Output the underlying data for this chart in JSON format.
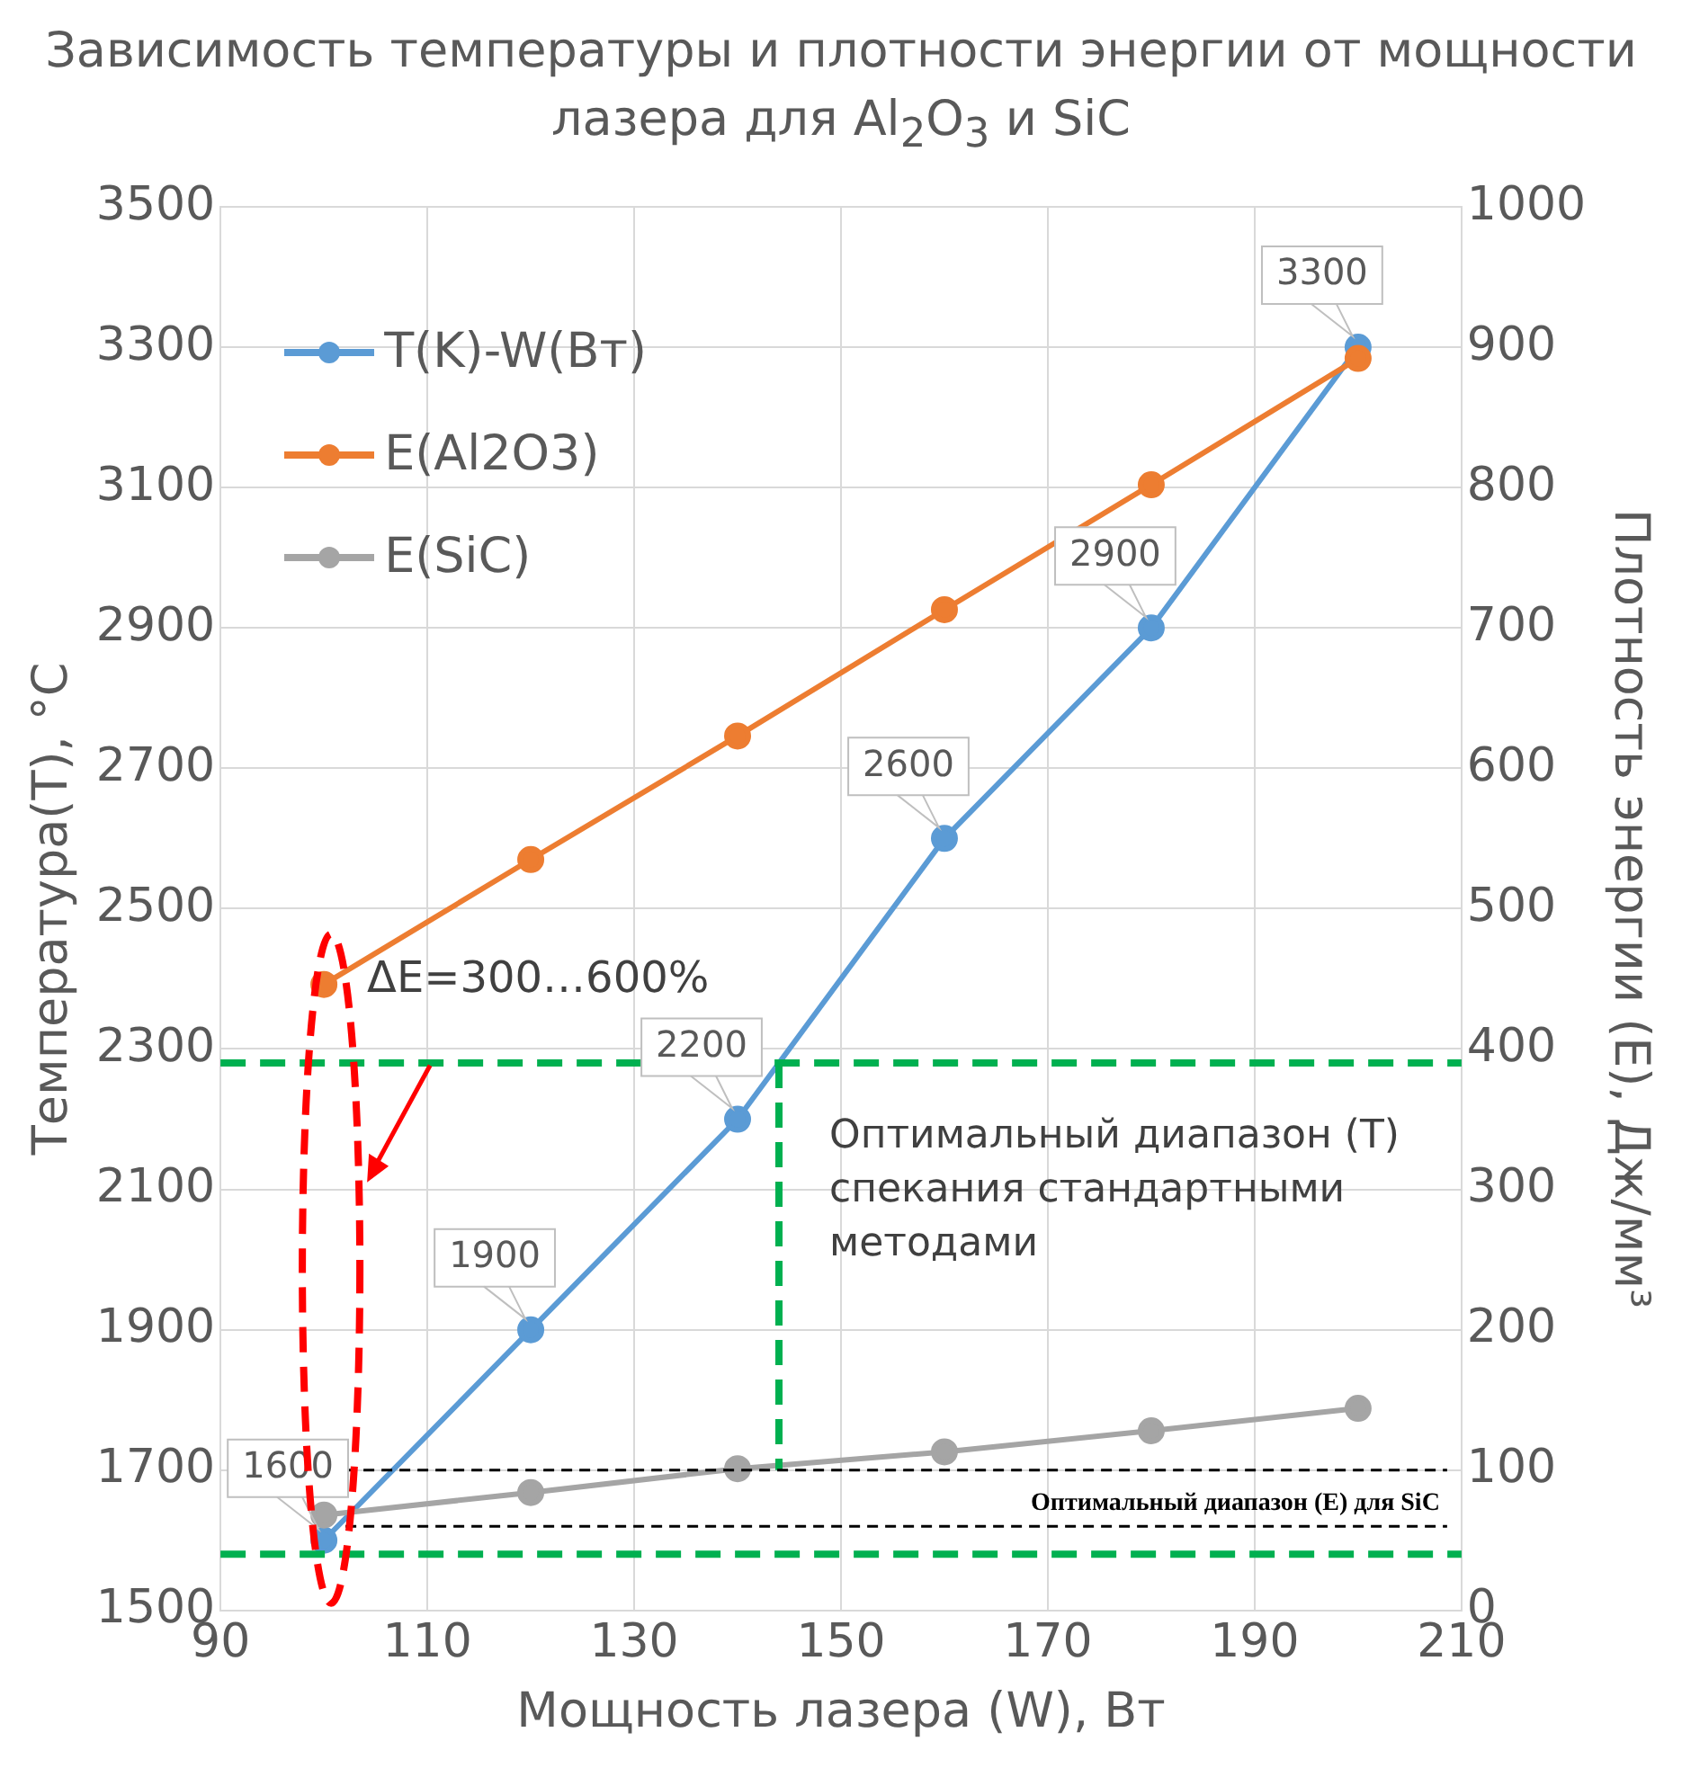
{
  "chart_data": {
    "type": "line",
    "title": "Зависимость температуры и плотности энергии от мощности лазера для Al$_{2}$O$_{3}$ и SiC",
    "xlabel": "Мощность лазера (W), Вт",
    "ylabel": "Температура(T), °C",
    "y2label": "Плотность энергии (E), Дж/мм³",
    "x": [
      100,
      120,
      140,
      160,
      180,
      200
    ],
    "series": [
      {
        "name": "T(K)-W(Вт)",
        "color": "#5b9bd5",
        "values": [
          1600,
          1900,
          2200,
          2600,
          2900,
          3300
        ],
        "value_labels": [
          "1600",
          "1900",
          "2200",
          "2600",
          "2900",
          "3300"
        ]
      },
      {
        "name": "E(Al2O3)",
        "color": "#ed7d31",
        "axis": "y2",
        "values": [
          446,
          535,
          623,
          713,
          802,
          892
        ]
      },
      {
        "name": "E(SiC)",
        "color": "#a5a5a5",
        "axis": "y2",
        "values": [
          68,
          84,
          101,
          113,
          128,
          144
        ]
      }
    ],
    "xlim": [
      90,
      210
    ],
    "xticks": [
      90,
      110,
      130,
      150,
      170,
      190,
      210
    ],
    "ylim": [
      1500,
      3500
    ],
    "yticks": [
      1500,
      1700,
      1900,
      2100,
      2300,
      2500,
      2700,
      2900,
      3100,
      3300,
      3500
    ],
    "y2lim": [
      0,
      1000
    ],
    "y2ticks": [
      0,
      100,
      200,
      300,
      400,
      500,
      600,
      700,
      800,
      900,
      1000
    ],
    "ref_lines": [
      {
        "axis": "x",
        "value": 144,
        "color": "#00b050",
        "line_style": "dashed"
      },
      {
        "axis": "y",
        "value": 2280,
        "color": "#00b050",
        "line_style": "dashed"
      },
      {
        "axis": "y",
        "value": 1580,
        "color": "#00b050",
        "line_style": "dashed"
      },
      {
        "axis": "y2",
        "value": 100,
        "color": "#000000",
        "line_style": "dashed"
      },
      {
        "axis": "y2",
        "value": 60,
        "color": "#000000",
        "line_style": "dashed"
      }
    ],
    "annotations": [
      "ΔE=300…600%",
      "Оптимальный диапазон (T) спекания стандартными методами",
      "Оптимальный диапазон (E) для SiC"
    ],
    "grid": true,
    "legend": "top left",
    "marker": "circle",
    "line_style": "solid"
  }
}
